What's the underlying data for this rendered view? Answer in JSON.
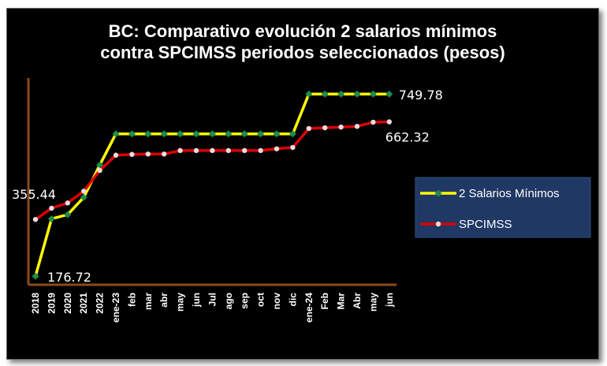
{
  "chart_data": {
    "type": "line",
    "title_line1": "BC: Comparativo evolución 2 salarios mínimos",
    "title_line2": "contra SPCIMSS  periodos seleccionados (pesos)",
    "categories": [
      "2018",
      "2019",
      "2020",
      "2021",
      "2022",
      "ene-23",
      "feb",
      "mar",
      "abr",
      "may",
      "jun",
      "Jul",
      "ago",
      "sep",
      "oct",
      "nov",
      "dic",
      "ene-24",
      "Feb",
      "Mar",
      "Abr",
      "may",
      "jun"
    ],
    "ylim": [
      150,
      800
    ],
    "legend_position": "right",
    "series": [
      {
        "name": "2 Salarios Mínimos",
        "color": "#ffff00",
        "marker_color": "#1e8c4a",
        "values": [
          176.72,
          357.2,
          370.6,
          424.6,
          526.8,
          624.54,
          624.54,
          624.54,
          624.54,
          624.54,
          624.54,
          624.54,
          624.54,
          624.54,
          624.54,
          624.54,
          624.54,
          749.78,
          749.78,
          749.78,
          749.78,
          749.78,
          749.78
        ]
      },
      {
        "name": "SPCIMSS",
        "color": "#dd0000",
        "marker_color": "#f0d8e0",
        "values": [
          355.44,
          390.7,
          407.2,
          444.2,
          509.6,
          557.5,
          560.0,
          561.1,
          561.1,
          572.1,
          572.1,
          572.1,
          572.1,
          572.1,
          572.1,
          577.6,
          581.9,
          641.5,
          643.7,
          645.9,
          648.1,
          661.3,
          662.32
        ]
      }
    ],
    "data_labels": [
      {
        "series": 1,
        "index": 0,
        "text": "355.44"
      },
      {
        "series": 0,
        "index": 0,
        "text": "176.72"
      },
      {
        "series": 0,
        "index": 22,
        "text": "749.78"
      },
      {
        "series": 1,
        "index": 22,
        "text": "662.32"
      }
    ]
  }
}
